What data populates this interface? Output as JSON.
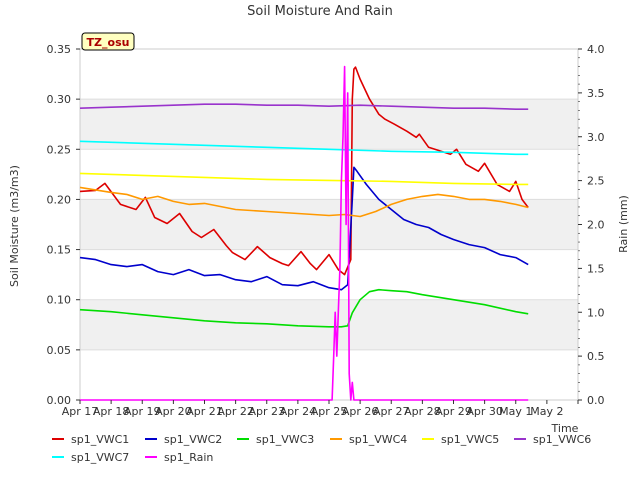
{
  "chart_data": {
    "type": "line",
    "title": "Soil Moisture And Rain",
    "badge": "TZ_osu",
    "xlabel": "Time",
    "ylabel": "Soil Moisture (m3/m3)",
    "y2label": "Rain (mm)",
    "xlim": [
      0,
      16
    ],
    "ylim": [
      0,
      0.35
    ],
    "y2lim": [
      0,
      4.0
    ],
    "x_ticks": [
      0,
      1,
      2,
      3,
      4,
      5,
      6,
      7,
      8,
      9,
      10,
      11,
      12,
      13,
      14,
      15,
      16
    ],
    "x_tick_labels": [
      "Apr 17",
      "Apr 18",
      "Apr 19",
      "Apr 20",
      "Apr 21",
      "Apr 22",
      "Apr 23",
      "Apr 24",
      "Apr 25",
      "Apr 26",
      "Apr 27",
      "Apr 28",
      "Apr 29",
      "Apr 30",
      "May 1",
      "May 2",
      ""
    ],
    "y_ticks": [
      0.0,
      0.05,
      0.1,
      0.15,
      0.2,
      0.25,
      0.3,
      0.35
    ],
    "y_tick_labels": [
      "0.00",
      "0.05",
      "0.10",
      "0.15",
      "0.20",
      "0.25",
      "0.30",
      "0.35"
    ],
    "y2_ticks": [
      0.0,
      0.5,
      1.0,
      1.5,
      2.0,
      2.5,
      3.0,
      3.5,
      4.0
    ],
    "y2_tick_labels": [
      "0.0",
      "0.5",
      "1.0",
      "1.5",
      "2.0",
      "2.5",
      "3.0",
      "3.5",
      "4.0"
    ],
    "grid": "horizontal bands",
    "legend_placement": "bottom",
    "series": [
      {
        "name": "sp1_VWC1",
        "color": "#dd0000",
        "axis": "left",
        "x": [
          0,
          0.5,
          0.8,
          1.3,
          1.8,
          2.1,
          2.4,
          2.8,
          3.2,
          3.6,
          3.9,
          4.3,
          4.7,
          4.9,
          5.3,
          5.7,
          6.1,
          6.5,
          6.7,
          7.1,
          7.4,
          7.6,
          8.0,
          8.3,
          8.5,
          8.7,
          8.75,
          8.8,
          8.85,
          9.0,
          9.3,
          9.6,
          9.8,
          10.1,
          10.5,
          10.8,
          10.9,
          11.2,
          11.6,
          11.9,
          12.1,
          12.4,
          12.8,
          13.0,
          13.4,
          13.8,
          14.0,
          14.2,
          14.4
        ],
        "y": [
          0.208,
          0.209,
          0.216,
          0.195,
          0.19,
          0.202,
          0.182,
          0.176,
          0.186,
          0.168,
          0.162,
          0.17,
          0.154,
          0.147,
          0.14,
          0.153,
          0.142,
          0.136,
          0.134,
          0.148,
          0.136,
          0.13,
          0.145,
          0.13,
          0.125,
          0.14,
          0.3,
          0.33,
          0.332,
          0.32,
          0.3,
          0.285,
          0.28,
          0.275,
          0.268,
          0.262,
          0.265,
          0.252,
          0.248,
          0.245,
          0.25,
          0.235,
          0.228,
          0.236,
          0.215,
          0.208,
          0.218,
          0.2,
          0.192
        ]
      },
      {
        "name": "sp1_VWC2",
        "color": "#0000cc",
        "axis": "left",
        "x": [
          0,
          0.5,
          1.0,
          1.5,
          2.0,
          2.5,
          3.0,
          3.5,
          4.0,
          4.5,
          5.0,
          5.5,
          6.0,
          6.5,
          7.0,
          7.5,
          8.0,
          8.4,
          8.6,
          8.75,
          8.8,
          8.9,
          9.2,
          9.6,
          10.0,
          10.4,
          10.8,
          11.2,
          11.6,
          12.0,
          12.5,
          13.0,
          13.5,
          14.0,
          14.4
        ],
        "y": [
          0.142,
          0.14,
          0.135,
          0.133,
          0.135,
          0.128,
          0.125,
          0.13,
          0.124,
          0.125,
          0.12,
          0.118,
          0.123,
          0.115,
          0.114,
          0.118,
          0.112,
          0.11,
          0.115,
          0.2,
          0.232,
          0.228,
          0.215,
          0.2,
          0.19,
          0.18,
          0.175,
          0.172,
          0.165,
          0.16,
          0.155,
          0.152,
          0.145,
          0.142,
          0.135
        ]
      },
      {
        "name": "sp1_VWC3",
        "color": "#00dd00",
        "axis": "left",
        "x": [
          0,
          1,
          2,
          3,
          4,
          5,
          6,
          7,
          8,
          8.4,
          8.6,
          8.75,
          9.0,
          9.3,
          9.6,
          10.0,
          10.5,
          11,
          12,
          13,
          14,
          14.4
        ],
        "y": [
          0.09,
          0.088,
          0.085,
          0.082,
          0.079,
          0.077,
          0.076,
          0.074,
          0.073,
          0.073,
          0.074,
          0.087,
          0.1,
          0.108,
          0.11,
          0.109,
          0.108,
          0.105,
          0.1,
          0.095,
          0.088,
          0.086
        ]
      },
      {
        "name": "sp1_VWC4",
        "color": "#ff9900",
        "axis": "left",
        "x": [
          0,
          1,
          1.5,
          2,
          2.5,
          3,
          3.5,
          4,
          5,
          6,
          7,
          8,
          8.5,
          9.0,
          9.5,
          10,
          10.5,
          11,
          11.5,
          12,
          12.5,
          13,
          13.5,
          14,
          14.4
        ],
        "y": [
          0.212,
          0.207,
          0.205,
          0.2,
          0.203,
          0.198,
          0.195,
          0.196,
          0.19,
          0.188,
          0.186,
          0.184,
          0.185,
          0.183,
          0.188,
          0.195,
          0.2,
          0.203,
          0.205,
          0.203,
          0.2,
          0.2,
          0.198,
          0.195,
          0.192
        ]
      },
      {
        "name": "sp1_VWC5",
        "color": "#ffff00",
        "axis": "left",
        "x": [
          0,
          2,
          4,
          6,
          8,
          10,
          12,
          14,
          14.4
        ],
        "y": [
          0.226,
          0.224,
          0.222,
          0.22,
          0.219,
          0.218,
          0.216,
          0.215,
          0.215
        ]
      },
      {
        "name": "sp1_VWC6",
        "color": "#9933cc",
        "axis": "left",
        "x": [
          0,
          1,
          2,
          3,
          4,
          5,
          6,
          7,
          8,
          9,
          10,
          11,
          12,
          13,
          14,
          14.4
        ],
        "y": [
          0.291,
          0.292,
          0.293,
          0.294,
          0.295,
          0.295,
          0.294,
          0.294,
          0.293,
          0.294,
          0.293,
          0.292,
          0.291,
          0.291,
          0.29,
          0.29
        ]
      },
      {
        "name": "sp1_VWC7",
        "color": "#00ffff",
        "axis": "left",
        "x": [
          0,
          2,
          4,
          6,
          8,
          10,
          12,
          14,
          14.4
        ],
        "y": [
          0.258,
          0.256,
          0.254,
          0.252,
          0.25,
          0.248,
          0.247,
          0.245,
          0.245
        ]
      },
      {
        "name": "sp1_Rain",
        "color": "#ff00ff",
        "axis": "right",
        "x": [
          0,
          8.0,
          8.1,
          8.15,
          8.2,
          8.25,
          8.3,
          8.35,
          8.4,
          8.45,
          8.5,
          8.55,
          8.6,
          8.65,
          8.7,
          8.75,
          8.8,
          8.85,
          8.9,
          9.0,
          14.4
        ],
        "y": [
          0,
          0,
          0,
          0.5,
          1.0,
          0.5,
          1.0,
          1.5,
          2.5,
          3.0,
          3.8,
          2.0,
          3.5,
          0.3,
          0.0,
          0.2,
          0.0,
          0,
          0,
          0,
          0
        ]
      }
    ]
  }
}
